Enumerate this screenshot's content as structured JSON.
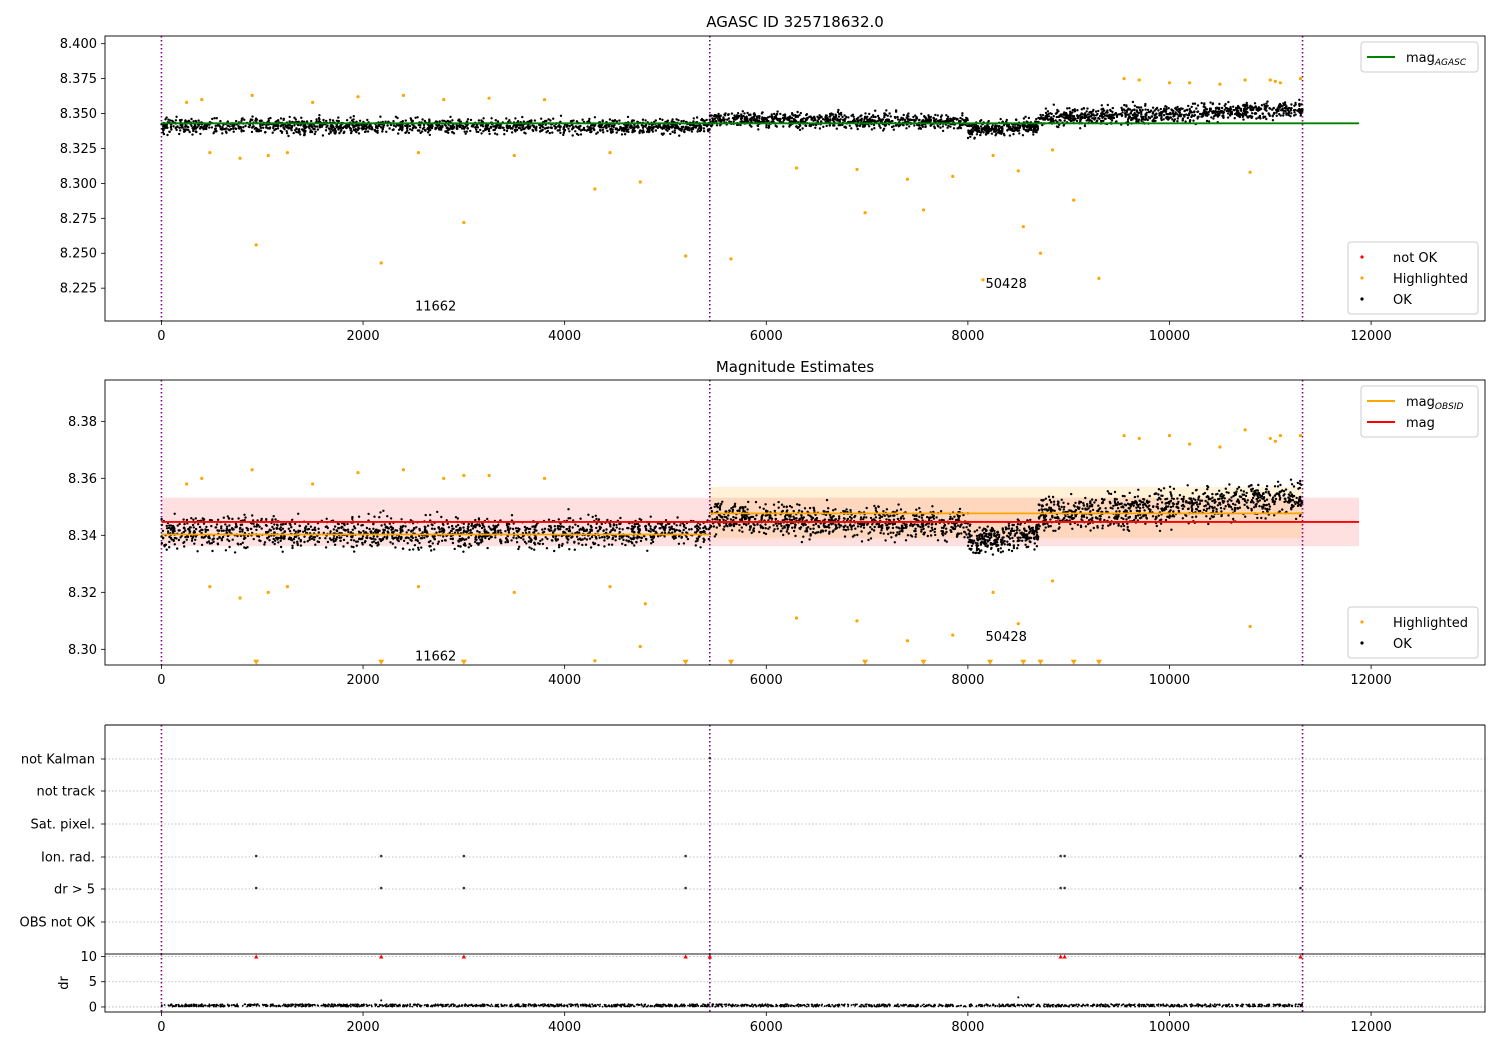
{
  "chart_data": [
    {
      "type": "scatter",
      "title": "AGASC ID 325718632.0",
      "xlabel": "",
      "ylabel": "",
      "xlim": [
        -560,
        13130
      ],
      "ylim": [
        8.2015,
        8.4055
      ],
      "x_ticks": [
        0,
        2000,
        4000,
        6000,
        8000,
        10000,
        12000
      ],
      "y_ticks": [
        8.225,
        8.25,
        8.275,
        8.3,
        8.325,
        8.35,
        8.375,
        8.4
      ],
      "y_tick_decimals": 3,
      "grid": false,
      "boundaries_x": [
        0,
        5440,
        11320
      ],
      "obsid_labels": [
        {
          "text": "11662",
          "x": 2720,
          "y": 8.209
        },
        {
          "text": "50428",
          "x": 8380,
          "y": 8.225
        }
      ],
      "lines": [
        {
          "name": "mag_AGASC",
          "label_base": "mag",
          "label_sub": "AGASC",
          "color": "#008000",
          "segments": [
            [
              0,
              11880,
              8.343
            ]
          ]
        }
      ],
      "legend": [
        {
          "position": "upper-right",
          "entries": [
            {
              "label": "mag",
              "sub": "AGASC",
              "kind": "line",
              "color": "#008000"
            }
          ]
        },
        {
          "position": "lower-right",
          "entries": [
            {
              "label": "not OK",
              "kind": "dot",
              "color": "#ff0000"
            },
            {
              "label": "Highlighted",
              "kind": "dot",
              "color": "#ffa500"
            },
            {
              "label": "OK",
              "kind": "dot",
              "color": "#000000"
            }
          ]
        }
      ],
      "series": [
        {
          "name": "OK",
          "color": "#000000",
          "density_segments": [
            {
              "x0": 0,
              "x1": 5440,
              "center_start": 8.341,
              "center_end": 8.341,
              "spread": 0.007,
              "n": 1500
            },
            {
              "x0": 5440,
              "x1": 8000,
              "center_start": 8.346,
              "center_end": 8.344,
              "spread": 0.007,
              "n": 800
            },
            {
              "x0": 8000,
              "x1": 8700,
              "center_start": 8.338,
              "center_end": 8.341,
              "spread": 0.007,
              "n": 300
            },
            {
              "x0": 8700,
              "x1": 11320,
              "center_start": 8.347,
              "center_end": 8.353,
              "spread": 0.008,
              "n": 850
            }
          ]
        },
        {
          "name": "Highlighted",
          "color": "#ffa500",
          "points": [
            [
              250,
              8.358
            ],
            [
              400,
              8.36
            ],
            [
              480,
              8.322
            ],
            [
              780,
              8.318
            ],
            [
              900,
              8.363
            ],
            [
              940,
              8.256
            ],
            [
              1060,
              8.32
            ],
            [
              1250,
              8.322
            ],
            [
              1500,
              8.358
            ],
            [
              1950,
              8.362
            ],
            [
              2180,
              8.243
            ],
            [
              2400,
              8.363
            ],
            [
              2550,
              8.322
            ],
            [
              2800,
              8.36
            ],
            [
              3000,
              8.272
            ],
            [
              3250,
              8.361
            ],
            [
              3500,
              8.32
            ],
            [
              3800,
              8.36
            ],
            [
              4300,
              8.296
            ],
            [
              4450,
              8.322
            ],
            [
              4750,
              8.301
            ],
            [
              5200,
              8.248
            ],
            [
              5650,
              8.246
            ],
            [
              6300,
              8.311
            ],
            [
              6900,
              8.31
            ],
            [
              6980,
              8.279
            ],
            [
              7400,
              8.303
            ],
            [
              7560,
              8.281
            ],
            [
              7850,
              8.305
            ],
            [
              8150,
              8.231
            ],
            [
              8250,
              8.32
            ],
            [
              8500,
              8.309
            ],
            [
              8550,
              8.269
            ],
            [
              8720,
              8.25
            ],
            [
              8840,
              8.324
            ],
            [
              9050,
              8.288
            ],
            [
              9300,
              8.232
            ],
            [
              9550,
              8.375
            ],
            [
              9700,
              8.374
            ],
            [
              10000,
              8.372
            ],
            [
              10200,
              8.372
            ],
            [
              10500,
              8.371
            ],
            [
              10750,
              8.374
            ],
            [
              10800,
              8.308
            ],
            [
              11000,
              8.374
            ],
            [
              11050,
              8.373
            ],
            [
              11100,
              8.372
            ],
            [
              11300,
              8.375
            ]
          ]
        }
      ]
    },
    {
      "type": "scatter",
      "title": "Magnitude Estimates",
      "xlabel": "",
      "ylabel": "",
      "xlim": [
        -560,
        13130
      ],
      "ylim": [
        8.2945,
        8.3945
      ],
      "x_ticks": [
        0,
        2000,
        4000,
        6000,
        8000,
        10000,
        12000
      ],
      "y_ticks": [
        8.3,
        8.32,
        8.34,
        8.36,
        8.38
      ],
      "y_tick_decimals": 2,
      "grid": false,
      "boundaries_x": [
        0,
        5440,
        11320
      ],
      "obsid_labels": [
        {
          "text": "11662",
          "x": 2720,
          "y": 8.296
        },
        {
          "text": "50428",
          "x": 8380,
          "y": 8.303
        }
      ],
      "bands": [
        {
          "x0": 0,
          "x1": 11880,
          "y0": 8.3362,
          "y1": 8.3532,
          "color": "#ff0000",
          "opacity": 0.12
        },
        {
          "x0": 5440,
          "x1": 11320,
          "y0": 8.339,
          "y1": 8.357,
          "color": "#ffa500",
          "opacity": 0.15
        }
      ],
      "lines": [
        {
          "name": "mag_OBSID",
          "label_base": "mag",
          "label_sub": "OBSID",
          "color": "#ffa500",
          "segments": [
            [
              0,
              5440,
              8.3403
            ],
            [
              5440,
              11320,
              8.3477
            ]
          ]
        },
        {
          "name": "mag",
          "label_base": "mag",
          "label_sub": "",
          "color": "#ff0000",
          "segments": [
            [
              0,
              11880,
              8.3447
            ]
          ]
        }
      ],
      "legend": [
        {
          "position": "upper-right",
          "entries": [
            {
              "label": "mag",
              "sub": "OBSID",
              "kind": "line",
              "color": "#ffa500"
            },
            {
              "label": "mag",
              "sub": "",
              "kind": "line",
              "color": "#ff0000"
            }
          ]
        },
        {
          "position": "lower-right",
          "entries": [
            {
              "label": "Highlighted",
              "kind": "dot",
              "color": "#ffa500"
            },
            {
              "label": "OK",
              "kind": "dot",
              "color": "#000000"
            }
          ]
        }
      ],
      "series": [
        {
          "name": "OK",
          "color": "#000000",
          "density_segments": [
            {
              "x0": 0,
              "x1": 5440,
              "center_start": 8.341,
              "center_end": 8.341,
              "spread": 0.007,
              "n": 1500
            },
            {
              "x0": 5440,
              "x1": 8000,
              "center_start": 8.346,
              "center_end": 8.344,
              "spread": 0.007,
              "n": 800
            },
            {
              "x0": 8000,
              "x1": 8700,
              "center_start": 8.338,
              "center_end": 8.341,
              "spread": 0.007,
              "n": 300
            },
            {
              "x0": 8700,
              "x1": 11320,
              "center_start": 8.347,
              "center_end": 8.353,
              "spread": 0.008,
              "n": 850
            }
          ]
        },
        {
          "name": "Highlighted",
          "color": "#ffa500",
          "points": [
            [
              250,
              8.358
            ],
            [
              400,
              8.36
            ],
            [
              480,
              8.322
            ],
            [
              780,
              8.318
            ],
            [
              900,
              8.363
            ],
            [
              1060,
              8.32
            ],
            [
              1250,
              8.322
            ],
            [
              1500,
              8.358
            ],
            [
              1950,
              8.362
            ],
            [
              2400,
              8.363
            ],
            [
              2550,
              8.322
            ],
            [
              2800,
              8.36
            ],
            [
              3000,
              8.361
            ],
            [
              3250,
              8.361
            ],
            [
              3500,
              8.32
            ],
            [
              3800,
              8.36
            ],
            [
              4300,
              8.296
            ],
            [
              4450,
              8.322
            ],
            [
              4750,
              8.301
            ],
            [
              4800,
              8.316
            ],
            [
              6300,
              8.311
            ],
            [
              6900,
              8.31
            ],
            [
              7400,
              8.303
            ],
            [
              7850,
              8.305
            ],
            [
              8250,
              8.32
            ],
            [
              8500,
              8.309
            ],
            [
              8840,
              8.324
            ],
            [
              9550,
              8.375
            ],
            [
              9700,
              8.374
            ],
            [
              10000,
              8.375
            ],
            [
              10200,
              8.372
            ],
            [
              10500,
              8.371
            ],
            [
              10750,
              8.377
            ],
            [
              10800,
              8.308
            ],
            [
              11000,
              8.374
            ],
            [
              11050,
              8.373
            ],
            [
              11100,
              8.375
            ],
            [
              11300,
              8.375
            ]
          ]
        }
      ],
      "clipped_markers": {
        "color": "#ffa500",
        "y": 8.2953,
        "x": [
          940,
          2180,
          3000,
          5200,
          5650,
          6980,
          7560,
          8220,
          8550,
          8720,
          9050,
          9300
        ]
      }
    },
    {
      "type": "scatter",
      "title": "",
      "xlabel": "",
      "ylabel": "",
      "xlim": [
        -560,
        13130
      ],
      "x_ticks": [
        0,
        2000,
        4000,
        6000,
        8000,
        10000,
        12000
      ],
      "grid": true,
      "boundaries_x": [
        0,
        5440,
        11320
      ],
      "categories": [
        "not Kalman",
        "not track",
        "Sat. pixel.",
        "Ion. rad.",
        "dr > 5",
        "OBS not OK"
      ],
      "flag_points": [
        {
          "category": "not Kalman",
          "x": [
            5440
          ]
        },
        {
          "category": "Ion. rad.",
          "x": [
            940,
            2180,
            3000,
            5200,
            8920,
            8960,
            11300
          ]
        },
        {
          "category": "dr > 5",
          "x": [
            940,
            2180,
            3000,
            5200,
            8920,
            8960,
            11300
          ]
        }
      ]
    },
    {
      "type": "scatter",
      "title": "",
      "xlabel": "",
      "ylabel": "dr",
      "xlim": [
        -560,
        13130
      ],
      "ylim": [
        -1,
        10.5
      ],
      "x_ticks": [
        0,
        2000,
        4000,
        6000,
        8000,
        10000,
        12000
      ],
      "y_ticks": [
        0,
        5,
        10
      ],
      "grid": true,
      "boundaries_x": [
        0,
        5440,
        11320
      ],
      "series": [
        {
          "name": "dr",
          "color": "#000000",
          "baseline_y": 0.3,
          "spread": 0.25,
          "n": 1800,
          "x0": 0,
          "x1": 11320,
          "outliers": [
            [
              2180,
              1.3
            ],
            [
              8500,
              1.9
            ]
          ]
        },
        {
          "name": "clipped",
          "color": "#ff0000",
          "marker": "triangle-up",
          "y": 10,
          "x": [
            940,
            2180,
            3000,
            5200,
            5440,
            8920,
            8960,
            11300
          ]
        }
      ]
    }
  ]
}
